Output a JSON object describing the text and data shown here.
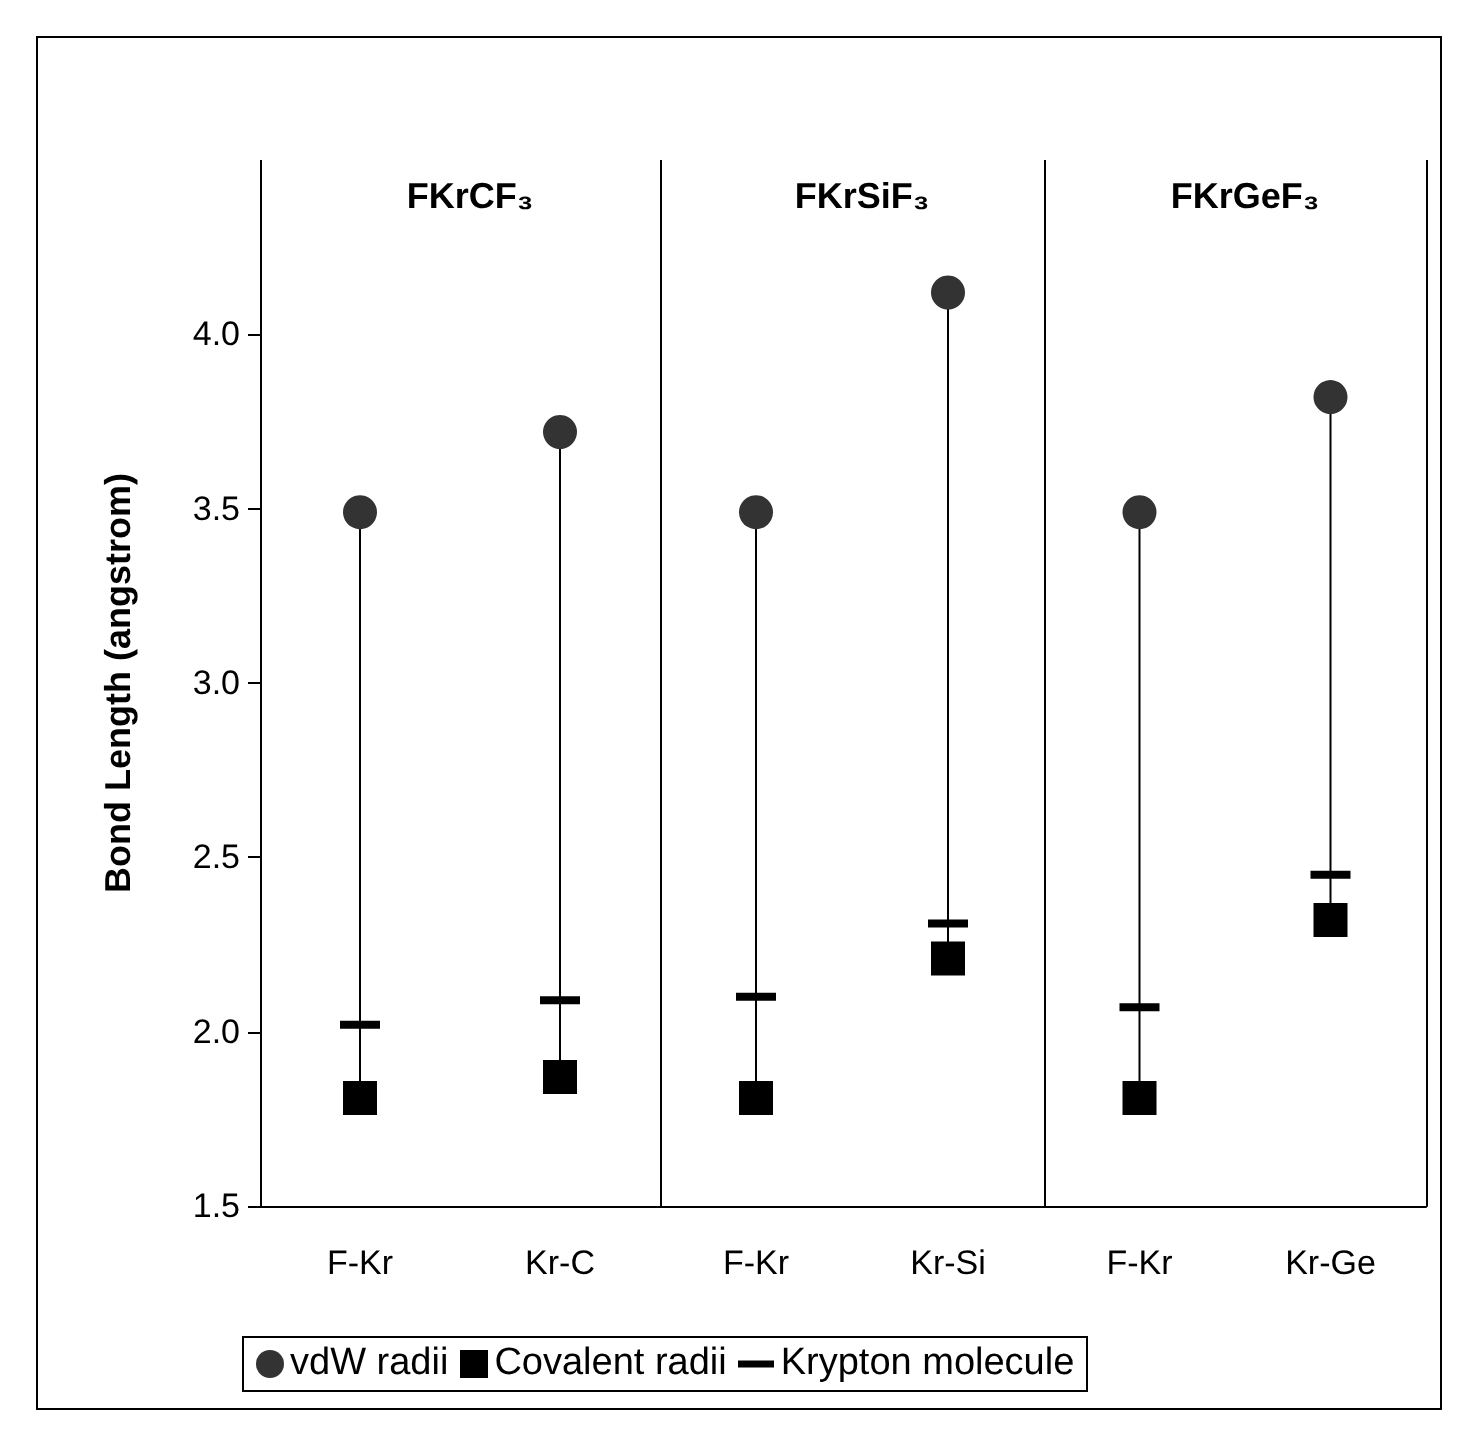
{
  "chart_data": [
    {
      "type": "scatter",
      "title": "FKrCF₃",
      "categories": [
        "F-Kr",
        "Kr-C"
      ],
      "ylabel": "Bond Length (angstrom)",
      "ylim": [
        1.5,
        4.5
      ],
      "yticks": [
        {
          "value": 1.5,
          "label": "1.5"
        },
        {
          "value": 2,
          "label": "2.0"
        },
        {
          "value": 2.5,
          "label": "2.5"
        },
        {
          "value": 3,
          "label": "3.0"
        },
        {
          "value": 3.5,
          "label": "3.5"
        },
        {
          "value": 4,
          "label": "4.0"
        }
      ],
      "legend": "bottom",
      "grid": false,
      "series": [
        {
          "type": "line",
          "color": "#000000",
          "marker": "none",
          "x": [
            "F-Kr",
            "F-Kr"
          ],
          "values": [
            1.81,
            3.49
          ]
        },
        {
          "type": "line",
          "color": "#000000",
          "marker": "none",
          "x": [
            "Kr-C",
            "Kr-C"
          ],
          "values": [
            1.87,
            3.72
          ]
        },
        {
          "name": "vdW radii",
          "color": "#333333",
          "marker": "circle",
          "values": [
            3.49,
            3.72
          ]
        },
        {
          "name": "Covalent radii",
          "color": "#000000",
          "marker": "square",
          "values": [
            1.81,
            1.87
          ]
        },
        {
          "name": "Krypton molecule",
          "color": "#000000",
          "values": [
            2.02,
            2.09
          ]
        }
      ]
    },
    {
      "type": "scatter",
      "title": "FKrSiF₃",
      "categories": [
        "F-Kr",
        "Kr-Si"
      ],
      "ylim": [
        1.5,
        4.5
      ],
      "tick_labels": "x",
      "grid": false,
      "series": [
        {
          "type": "line",
          "color": "#000000",
          "marker": "none",
          "x": [
            "F-Kr",
            "F-Kr"
          ],
          "values": [
            1.81,
            3.49
          ]
        },
        {
          "type": "line",
          "color": "#000000",
          "marker": "none",
          "x": [
            "Kr-Si",
            "Kr-Si"
          ],
          "values": [
            2.21,
            4.12
          ]
        },
        {
          "name": "vdW radii",
          "color": "#333333",
          "marker": "circle",
          "values": [
            3.49,
            4.12
          ]
        },
        {
          "name": "Covalent radii",
          "color": "#000000",
          "marker": "square",
          "values": [
            1.81,
            2.21
          ]
        },
        {
          "name": "Krypton molecule",
          "color": "#000000",
          "values": [
            2.1,
            2.31
          ]
        }
      ]
    },
    {
      "type": "scatter",
      "title": "FKrGeF₃",
      "categories": [
        "F-Kr",
        "Kr-Ge"
      ],
      "ylim": [
        1.5,
        4.5
      ],
      "tick_labels": "x",
      "grid": false,
      "series": [
        {
          "type": "line",
          "color": "#000000",
          "marker": "none",
          "x": [
            "F-Kr",
            "F-Kr"
          ],
          "values": [
            1.81,
            3.49
          ]
        },
        {
          "type": "line",
          "color": "#000000",
          "marker": "none",
          "x": [
            "Kr-Ge",
            "Kr-Ge"
          ],
          "values": [
            2.32,
            3.82
          ]
        },
        {
          "name": "vdW radii",
          "color": "#333333",
          "marker": "circle",
          "values": [
            3.49,
            3.82
          ]
        },
        {
          "name": "Covalent radii",
          "color": "#000000",
          "marker": "square",
          "values": [
            1.81,
            2.32
          ]
        },
        {
          "name": "Krypton molecule",
          "color": "#000000",
          "values": [
            2.07,
            2.45
          ]
        }
      ]
    }
  ]
}
